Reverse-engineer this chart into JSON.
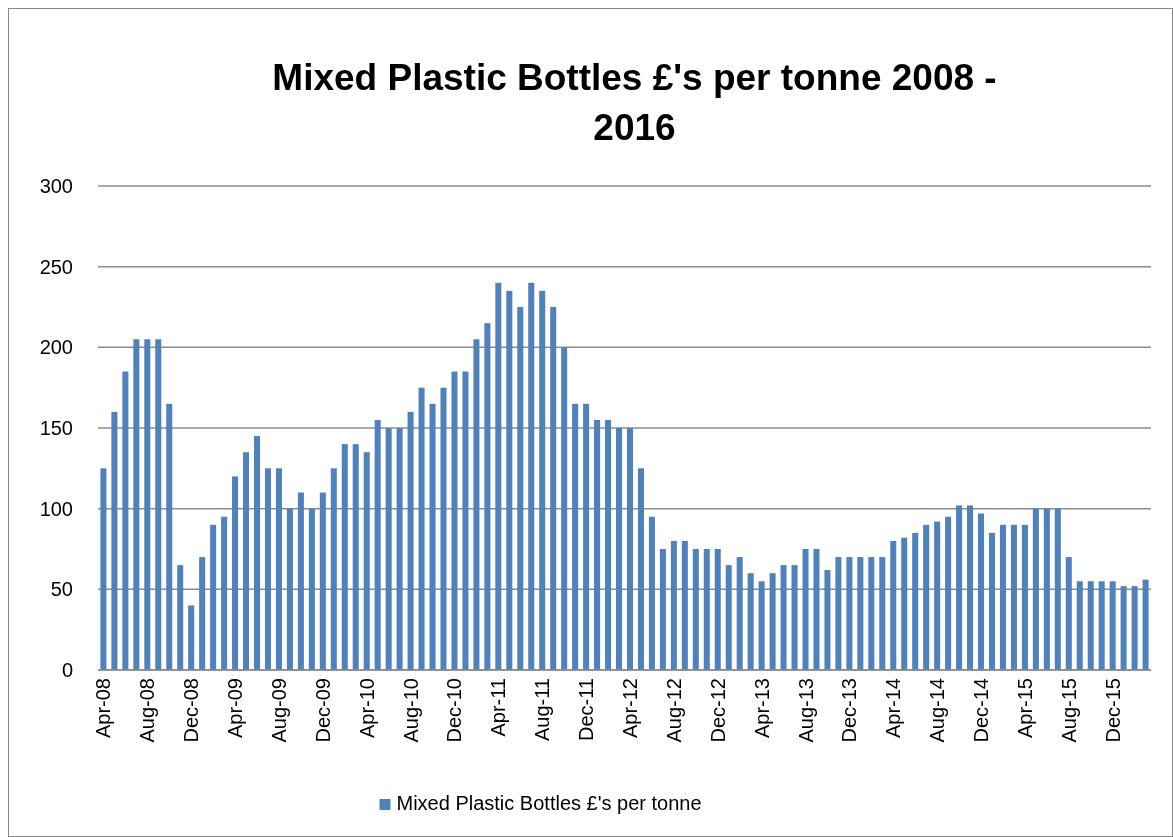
{
  "chart_data": {
    "type": "bar",
    "title": "Mixed Plastic Bottles £'s per tonne 2008 - 2016",
    "categories": [
      "Apr-08",
      null,
      null,
      null,
      "Aug-08",
      null,
      null,
      null,
      "Dec-08",
      null,
      null,
      null,
      "Apr-09",
      null,
      null,
      null,
      "Aug-09",
      null,
      null,
      null,
      "Dec-09",
      null,
      null,
      null,
      "Apr-10",
      null,
      null,
      null,
      "Aug-10",
      null,
      null,
      null,
      "Dec-10",
      null,
      null,
      null,
      "Apr-11",
      null,
      null,
      null,
      "Aug-11",
      null,
      null,
      null,
      "Dec-11",
      null,
      null,
      null,
      "Apr-12",
      null,
      null,
      null,
      "Aug-12",
      null,
      null,
      null,
      "Dec-12",
      null,
      null,
      null,
      "Apr-13",
      null,
      null,
      null,
      "Aug-13",
      null,
      null,
      null,
      "Dec-13",
      null,
      null,
      null,
      "Apr-14",
      null,
      null,
      null,
      "Aug-14",
      null,
      null,
      null,
      "Dec-14",
      null,
      null,
      null,
      "Apr-15",
      null,
      null,
      null,
      "Aug-15",
      null,
      null,
      null,
      "Dec-15",
      null,
      null,
      null
    ],
    "series": [
      {
        "name": "Mixed Plastic Bottles £'s per tonne",
        "color": "#4f81bd",
        "values": [
          125,
          160,
          185,
          205,
          205,
          205,
          165,
          65,
          40,
          70,
          90,
          95,
          120,
          135,
          145,
          125,
          125,
          100,
          110,
          100,
          110,
          125,
          140,
          140,
          135,
          155,
          150,
          150,
          160,
          175,
          165,
          175,
          185,
          185,
          205,
          215,
          240,
          235,
          225,
          240,
          235,
          225,
          200,
          165,
          165,
          155,
          155,
          150,
          150,
          125,
          95,
          75,
          80,
          80,
          75,
          75,
          75,
          65,
          70,
          60,
          55,
          60,
          65,
          65,
          75,
          75,
          62,
          70,
          70,
          70,
          70,
          70,
          80,
          82,
          85,
          90,
          92,
          95,
          102,
          102,
          97,
          85,
          90,
          90,
          90,
          100,
          100,
          100,
          70,
          55,
          55,
          55,
          55,
          52,
          52,
          56
        ]
      }
    ],
    "ylim": [
      0,
      300
    ],
    "yticks": [
      0,
      50,
      100,
      150,
      200,
      250,
      300
    ],
    "grid": "y",
    "legend": "bottom"
  }
}
